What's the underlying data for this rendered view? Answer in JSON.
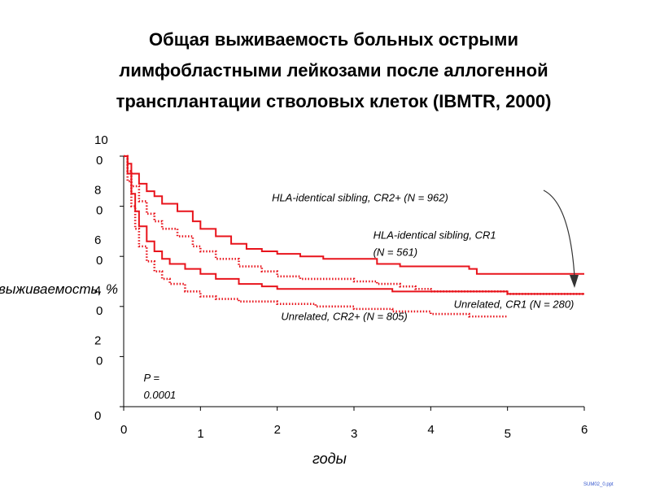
{
  "slide": {
    "title_lines": [
      "Общая выживаемость больных острыми",
      "лимфобластными лейкозами после аллогенной",
      "трансплантации стволовых клеток (IBMTR, 2000)"
    ],
    "footer": "SUM02_0.ppt"
  },
  "chart_data": {
    "type": "line",
    "ylabel": "выживаемость, %",
    "xlabel": "годы",
    "xlim": [
      0,
      6
    ],
    "ylim": [
      0,
      100
    ],
    "x_ticks": [
      "0",
      "1",
      "2",
      "3",
      "4",
      "5",
      "6"
    ],
    "y_ticks": [
      {
        "value": 100,
        "lines": [
          "10",
          "0"
        ]
      },
      {
        "value": 80,
        "lines": [
          "8",
          "0"
        ]
      },
      {
        "value": 60,
        "lines": [
          "6",
          "0"
        ]
      },
      {
        "value": 40,
        "lines": [
          "4",
          "0"
        ]
      },
      {
        "value": 20,
        "lines": [
          "2",
          "0"
        ]
      },
      {
        "value": 0,
        "lines": [
          "0"
        ]
      }
    ],
    "color": "#e8141c",
    "series": [
      {
        "name": "HLA-identical sibling, CR1 (N = 561)",
        "style": "solid",
        "x": [
          0,
          0.05,
          0.1,
          0.2,
          0.3,
          0.4,
          0.5,
          0.7,
          0.9,
          1.0,
          1.2,
          1.4,
          1.6,
          1.8,
          2.0,
          2.3,
          2.6,
          3.0,
          3.3,
          3.6,
          4.0,
          4.5,
          4.6,
          5.0,
          5.5,
          6.0
        ],
        "y": [
          100,
          97,
          93,
          89,
          86,
          84,
          81,
          78,
          74,
          71,
          68,
          65,
          63,
          62,
          61,
          60,
          59,
          59,
          57,
          56,
          56,
          55,
          53,
          53,
          53,
          53
        ]
      },
      {
        "name": "HLA-identical sibling, CR2+ (N = 962)",
        "style": "dotted",
        "x": [
          0,
          0.05,
          0.1,
          0.2,
          0.3,
          0.4,
          0.5,
          0.7,
          0.9,
          1.0,
          1.2,
          1.5,
          1.8,
          2.0,
          2.3,
          2.6,
          3.0,
          3.3,
          3.6,
          3.8,
          4.0,
          4.5,
          5.0,
          5.5,
          6.0
        ],
        "y": [
          100,
          94,
          88,
          82,
          77,
          74,
          71,
          68,
          64,
          62,
          59,
          56,
          54,
          52,
          51,
          51,
          50,
          49,
          48,
          47,
          46,
          46,
          45,
          45,
          45
        ]
      },
      {
        "name": "Unrelated, CR1 (N = 280)",
        "style": "solid",
        "x": [
          0,
          0.05,
          0.1,
          0.15,
          0.2,
          0.3,
          0.4,
          0.5,
          0.6,
          0.8,
          1.0,
          1.2,
          1.5,
          1.8,
          2.0,
          2.5,
          3.0,
          3.5,
          4.0,
          4.5,
          5.0,
          5.5,
          6.0
        ],
        "y": [
          100,
          93,
          85,
          78,
          72,
          66,
          62,
          59,
          57,
          55,
          53,
          51,
          49,
          48,
          47,
          47,
          47,
          46,
          46,
          46,
          45,
          45,
          45
        ]
      },
      {
        "name": "Unrelated, CR2+ (N = 805)",
        "style": "dotted",
        "x": [
          0,
          0.05,
          0.1,
          0.15,
          0.2,
          0.3,
          0.4,
          0.5,
          0.6,
          0.8,
          1.0,
          1.2,
          1.5,
          2.0,
          2.5,
          3.0,
          3.5,
          4.0,
          4.5,
          5.0
        ],
        "y": [
          100,
          90,
          80,
          71,
          64,
          58,
          54,
          51,
          49,
          46,
          44,
          43,
          42,
          41,
          40,
          39,
          38,
          37,
          36,
          36
        ]
      }
    ],
    "annotations": [
      {
        "lines": [
          "HLA-identical sibling, CR2+ (N = 962)"
        ],
        "x": 1.93,
        "y": 82
      },
      {
        "lines": [
          "HLA-identical sibling, CR1",
          "(N = 561)"
        ],
        "x": 3.25,
        "y": 67
      },
      {
        "lines": [
          "Unrelated, CR1 (N = 280)"
        ],
        "x": 4.3,
        "y": 39.5
      },
      {
        "lines": [
          "Unrelated, CR2+ (N = 805)"
        ],
        "x": 2.05,
        "y": 34.5
      },
      {
        "lines": [
          "P =",
          "0.0001"
        ],
        "x": 0.26,
        "y": 10
      }
    ]
  }
}
